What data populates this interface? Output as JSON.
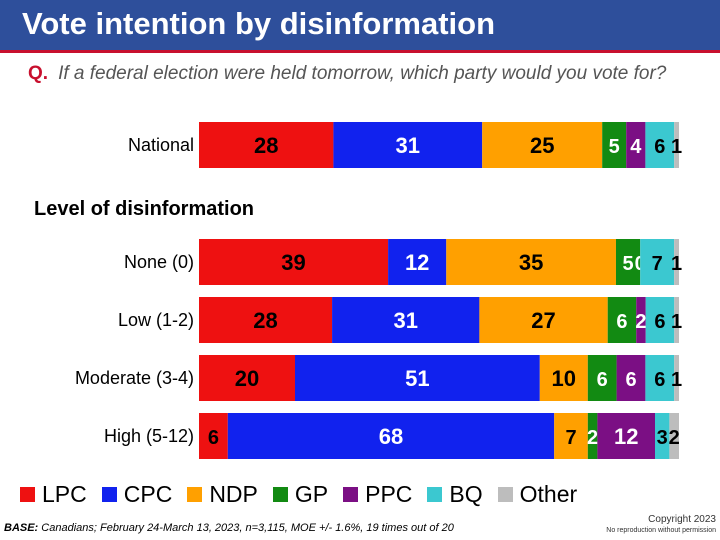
{
  "header": {
    "title": "Vote intention by disinformation"
  },
  "question": {
    "marker": "Q.",
    "text": "If a federal election were held tomorrow, which party would you vote for?"
  },
  "section_label": "Level of disinformation",
  "footer": {
    "base_key": "BASE:",
    "base_text": " Canadians; February 24-March 13, 2023, n=3,115,  MOE +/- 1.6%, 19 times out of 20",
    "copyright": "Copyright 2023",
    "notice": "No reproduction without permission"
  },
  "chart_data": {
    "type": "bar",
    "orientation": "horizontal",
    "stacked": true,
    "categories": [
      "National",
      "None (0)",
      "Low (1-2)",
      "Moderate (3-4)",
      "High (5-12)"
    ],
    "series": [
      {
        "name": "LPC",
        "color": "#ee1111",
        "values": [
          28,
          39,
          28,
          20,
          6
        ]
      },
      {
        "name": "CPC",
        "color": "#1122ee",
        "values": [
          31,
          12,
          31,
          51,
          68
        ]
      },
      {
        "name": "NDP",
        "color": "#ffa000",
        "values": [
          25,
          35,
          27,
          10,
          7
        ]
      },
      {
        "name": "GP",
        "color": "#128a12",
        "values": [
          5,
          5,
          6,
          6,
          2
        ]
      },
      {
        "name": "PPC",
        "color": "#7b0f84",
        "values": [
          4,
          0,
          2,
          6,
          12
        ]
      },
      {
        "name": "BQ",
        "color": "#3bc8d0",
        "values": [
          6,
          7,
          6,
          6,
          3
        ]
      },
      {
        "name": "Other",
        "color": "#bdbdbd",
        "values": [
          1,
          1,
          1,
          1,
          2
        ]
      }
    ],
    "xlim": [
      0,
      100
    ],
    "legend_position": "bottom"
  }
}
